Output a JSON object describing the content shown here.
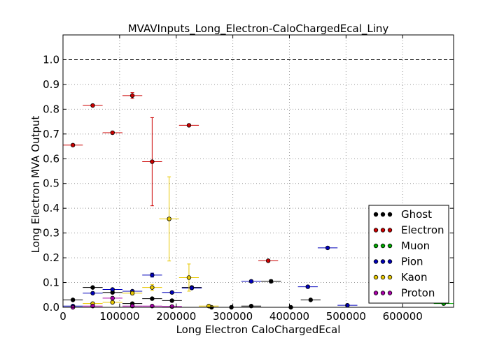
{
  "chart_data": {
    "type": "scatter",
    "title": "MVAVInputs_Long_Electron-CaloChargedEcal_Liny",
    "xlabel": "Long Electron CaloChargedEcal",
    "ylabel": "Long Electron MVA Output",
    "xlim": [
      0,
      690000
    ],
    "ylim": [
      0,
      1.1
    ],
    "x_ticks": [
      0,
      100000,
      200000,
      300000,
      400000,
      500000,
      600000
    ],
    "x_tick_labels": [
      "0",
      "100000",
      "200000",
      "300000",
      "400000",
      "500000",
      "600000"
    ],
    "y_ticks": [
      0.0,
      0.1,
      0.2,
      0.3,
      0.4,
      0.5,
      0.6,
      0.7,
      0.8,
      0.9,
      1.0
    ],
    "y_tick_labels": [
      "0.0",
      "0.1",
      "0.2",
      "0.3",
      "0.4",
      "0.5",
      "0.6",
      "0.7",
      "0.8",
      "0.9",
      "1.0"
    ],
    "reference_line_y": 1.0,
    "grid": true,
    "legend_position": "bottom-right",
    "series": [
      {
        "name": "Ghost",
        "color": "#000000",
        "x": [
          17500,
          52500,
          87500,
          122500,
          157500,
          192500,
          227500,
          262500,
          297500,
          332500,
          367500,
          402500,
          437500
        ],
        "y": [
          0.03,
          0.08,
          0.06,
          0.015,
          0.035,
          0.027,
          0.08,
          0.0,
          0.0,
          0.005,
          0.105,
          0.0,
          0.03
        ],
        "xerr": 17500,
        "yerr": [
          0.004,
          0.004,
          0.004,
          0.003,
          0.004,
          0.004,
          0.006,
          0.002,
          0.002,
          0.003,
          0.006,
          0.002,
          0.004
        ]
      },
      {
        "name": "Electron",
        "color": "#cc0000",
        "x": [
          17500,
          52500,
          87500,
          122500,
          157500,
          222500,
          362500
        ],
        "y": [
          0.655,
          0.815,
          0.705,
          0.855,
          0.588,
          0.735,
          0.188
        ],
        "xerr": 17500,
        "yerr": [
          0.004,
          0.004,
          0.005,
          0.012,
          0.178,
          0.004,
          0.005
        ]
      },
      {
        "name": "Muon",
        "color": "#00aa00",
        "x": [
          672500
        ],
        "y": [
          0.015
        ],
        "xerr": 17500,
        "yerr": [
          0.003
        ]
      },
      {
        "name": "Pion",
        "color": "#0000bb",
        "x": [
          17500,
          52500,
          87500,
          122500,
          157500,
          192500,
          227500,
          332500,
          432500,
          467500,
          502500
        ],
        "y": [
          0.005,
          0.057,
          0.072,
          0.065,
          0.13,
          0.06,
          0.078,
          0.105,
          0.083,
          0.24,
          0.008
        ],
        "xerr": 17500,
        "yerr": [
          0.003,
          0.004,
          0.004,
          0.004,
          0.008,
          0.004,
          0.005,
          0.005,
          0.005,
          0.005,
          0.003
        ]
      },
      {
        "name": "Kaon",
        "color": "#e8c800",
        "x": [
          52500,
          87500,
          122500,
          157500,
          187500,
          222500,
          257500
        ],
        "y": [
          0.015,
          0.02,
          0.057,
          0.08,
          0.357,
          0.12,
          0.005
        ],
        "xerr": 17500,
        "yerr": [
          0.004,
          0.005,
          0.007,
          0.012,
          0.17,
          0.055,
          0.005
        ]
      },
      {
        "name": "Proton",
        "color": "#aa00aa",
        "x": [
          17500,
          52500,
          87500,
          122500,
          157500,
          192500
        ],
        "y": [
          0.0,
          0.005,
          0.037,
          0.005,
          0.005,
          0.003
        ],
        "xerr": 17500,
        "yerr": [
          0.002,
          0.003,
          0.004,
          0.003,
          0.003,
          0.003
        ]
      }
    ]
  }
}
